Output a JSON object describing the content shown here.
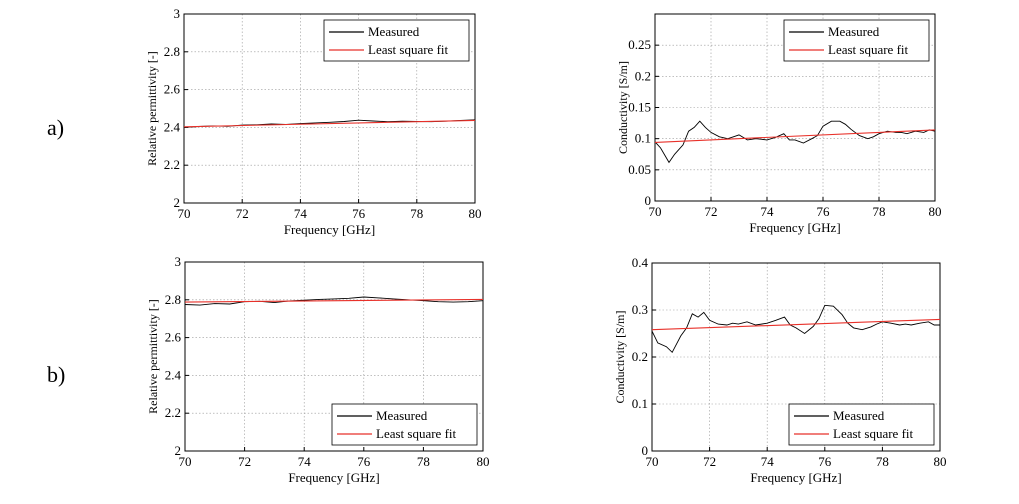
{
  "row_labels": [
    "a)",
    "b)"
  ],
  "chart_data": [
    {
      "type": "line",
      "title": "",
      "xlabel": "Frequency [GHz]",
      "ylabel": "Relative permittivity [-]",
      "xlim": [
        70,
        80
      ],
      "ylim": [
        2,
        3
      ],
      "xticks": [
        70,
        72,
        74,
        76,
        78,
        80
      ],
      "xtick_labels": [
        "70",
        "72",
        "74",
        "76",
        "78",
        "80"
      ],
      "yticks": [
        2,
        2.2,
        2.4,
        2.6,
        2.8,
        3
      ],
      "ytick_labels": [
        "2",
        "2.2",
        "2.4",
        "2.6",
        "2.8",
        "3"
      ],
      "grid": true,
      "legend_position": "top-right",
      "series": [
        {
          "name": "Measured",
          "color": "#000000",
          "x": [
            70,
            70.5,
            71,
            71.5,
            72,
            72.5,
            73,
            73.5,
            74,
            74.5,
            75,
            75.5,
            76,
            76.5,
            77,
            77.5,
            78,
            78.5,
            79,
            79.5,
            80
          ],
          "y": [
            2.4,
            2.405,
            2.408,
            2.406,
            2.412,
            2.414,
            2.418,
            2.416,
            2.42,
            2.424,
            2.427,
            2.431,
            2.438,
            2.434,
            2.43,
            2.433,
            2.431,
            2.43,
            2.433,
            2.437,
            2.44
          ]
        },
        {
          "name": "Least square fit",
          "color": "#e8312a",
          "x": [
            70,
            80
          ],
          "y": [
            2.403,
            2.437
          ]
        }
      ]
    },
    {
      "type": "line",
      "title": "",
      "xlabel": "Frequency [GHz]",
      "ylabel": "Conductivity [S/m]",
      "xlim": [
        70,
        80
      ],
      "ylim": [
        0,
        0.3
      ],
      "xticks": [
        70,
        72,
        74,
        76,
        78,
        80
      ],
      "xtick_labels": [
        "70",
        "72",
        "74",
        "76",
        "78",
        "80"
      ],
      "yticks": [
        0,
        0.05,
        0.1,
        0.15,
        0.2,
        0.25
      ],
      "ytick_labels": [
        "0",
        "0.05",
        "0.1",
        "0.15",
        "0.2",
        "0.25"
      ],
      "grid": true,
      "legend_position": "top-right",
      "series": [
        {
          "name": "Measured",
          "color": "#000000",
          "x": [
            70,
            70.2,
            70.5,
            70.7,
            71,
            71.2,
            71.4,
            71.6,
            71.8,
            72,
            72.3,
            72.6,
            72.8,
            73,
            73.3,
            73.6,
            74,
            74.3,
            74.6,
            74.8,
            75,
            75.3,
            75.6,
            75.8,
            76,
            76.3,
            76.6,
            76.8,
            77,
            77.3,
            77.6,
            77.8,
            78,
            78.3,
            78.6,
            78.8,
            79,
            79.3,
            79.6,
            79.8,
            80
          ],
          "y": [
            0.095,
            0.085,
            0.062,
            0.075,
            0.09,
            0.112,
            0.118,
            0.128,
            0.118,
            0.11,
            0.103,
            0.1,
            0.103,
            0.106,
            0.098,
            0.1,
            0.098,
            0.102,
            0.108,
            0.098,
            0.098,
            0.093,
            0.1,
            0.105,
            0.12,
            0.128,
            0.128,
            0.123,
            0.115,
            0.105,
            0.1,
            0.103,
            0.108,
            0.112,
            0.11,
            0.11,
            0.108,
            0.112,
            0.11,
            0.114,
            0.112
          ]
        },
        {
          "name": "Least square fit",
          "color": "#e8312a",
          "x": [
            70,
            80
          ],
          "y": [
            0.094,
            0.114
          ]
        }
      ]
    },
    {
      "type": "line",
      "title": "",
      "xlabel": "Frequency [GHz]",
      "ylabel": "Relative permittivity [-]",
      "xlim": [
        70,
        80
      ],
      "ylim": [
        2,
        3
      ],
      "xticks": [
        70,
        72,
        74,
        76,
        78,
        80
      ],
      "xtick_labels": [
        "70",
        "72",
        "74",
        "76",
        "78",
        "80"
      ],
      "yticks": [
        2,
        2.2,
        2.4,
        2.6,
        2.8,
        3
      ],
      "ytick_labels": [
        "2",
        "2.2",
        "2.4",
        "2.6",
        "2.8",
        "3"
      ],
      "grid": true,
      "legend_position": "bottom-right",
      "series": [
        {
          "name": "Measured",
          "color": "#000000",
          "x": [
            70,
            70.5,
            71,
            71.5,
            72,
            72.5,
            73,
            73.5,
            74,
            74.5,
            75,
            75.5,
            76,
            76.5,
            77,
            77.5,
            78,
            78.5,
            79,
            79.5,
            80
          ],
          "y": [
            2.775,
            2.772,
            2.78,
            2.778,
            2.79,
            2.792,
            2.785,
            2.794,
            2.798,
            2.802,
            2.805,
            2.808,
            2.815,
            2.81,
            2.805,
            2.8,
            2.795,
            2.79,
            2.788,
            2.79,
            2.795
          ]
        },
        {
          "name": "Least square fit",
          "color": "#e8312a",
          "x": [
            70,
            80
          ],
          "y": [
            2.788,
            2.802
          ]
        }
      ]
    },
    {
      "type": "line",
      "title": "",
      "xlabel": "Frequency [GHz]",
      "ylabel": "Conductivity [S/m]",
      "xlim": [
        70,
        80
      ],
      "ylim": [
        0,
        0.4
      ],
      "xticks": [
        70,
        72,
        74,
        76,
        78,
        80
      ],
      "xtick_labels": [
        "70",
        "72",
        "74",
        "76",
        "78",
        "80"
      ],
      "yticks": [
        0,
        0.1,
        0.2,
        0.3,
        0.4
      ],
      "ytick_labels": [
        "0",
        "0.1",
        "0.2",
        "0.3",
        "0.4"
      ],
      "grid": true,
      "legend_position": "bottom-right",
      "series": [
        {
          "name": "Measured",
          "color": "#000000",
          "x": [
            70,
            70.2,
            70.5,
            70.7,
            71,
            71.2,
            71.4,
            71.6,
            71.8,
            72,
            72.3,
            72.6,
            72.8,
            73,
            73.3,
            73.6,
            74,
            74.3,
            74.6,
            74.8,
            75,
            75.3,
            75.6,
            75.8,
            76,
            76.3,
            76.6,
            76.8,
            77,
            77.3,
            77.6,
            77.8,
            78,
            78.3,
            78.6,
            78.8,
            79,
            79.3,
            79.6,
            79.8,
            80
          ],
          "y": [
            0.255,
            0.23,
            0.222,
            0.21,
            0.245,
            0.262,
            0.292,
            0.285,
            0.295,
            0.278,
            0.27,
            0.268,
            0.272,
            0.27,
            0.275,
            0.268,
            0.272,
            0.278,
            0.285,
            0.268,
            0.262,
            0.25,
            0.265,
            0.282,
            0.31,
            0.308,
            0.29,
            0.272,
            0.262,
            0.258,
            0.264,
            0.27,
            0.275,
            0.272,
            0.268,
            0.27,
            0.268,
            0.272,
            0.275,
            0.268,
            0.268
          ]
        },
        {
          "name": "Least square fit",
          "color": "#e8312a",
          "x": [
            70,
            80
          ],
          "y": [
            0.258,
            0.28
          ]
        }
      ]
    }
  ]
}
